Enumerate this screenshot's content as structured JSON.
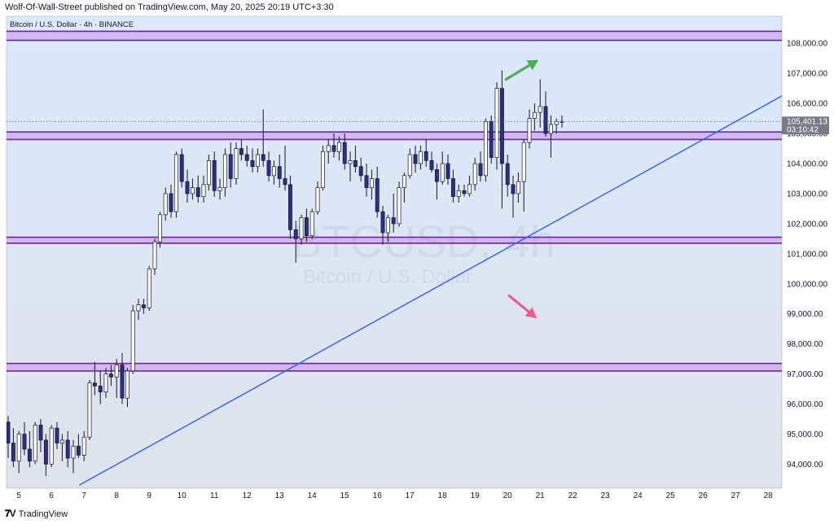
{
  "header": {
    "publish_line": "Wolf-Of-Wall-Street published on TradingView.com, May 20, 2025 20:19 UTC+3:30"
  },
  "footer": {
    "brand": "TradingView"
  },
  "chart_data": {
    "type": "candlestick",
    "symbol_line": "Bitcoin / U.S. Dollar · 4h · BINANCE",
    "watermark": {
      "symbol": "BTCUSD, 4h",
      "name": "Bitcoin / U.S. Dollar"
    },
    "y_axis": {
      "range": [
        93200,
        108900
      ],
      "ticks": [
        {
          "value": 94000,
          "label": "94,000.00"
        },
        {
          "value": 95000,
          "label": "95,000.00"
        },
        {
          "value": 96000,
          "label": "96,000.00"
        },
        {
          "value": 97000,
          "label": "97,000.00"
        },
        {
          "value": 98000,
          "label": "98,000.00"
        },
        {
          "value": 99000,
          "label": "99,000.00"
        },
        {
          "value": 100000,
          "label": "100,000.00"
        },
        {
          "value": 101000,
          "label": "101,000.00"
        },
        {
          "value": 102000,
          "label": "102,000.00"
        },
        {
          "value": 103000,
          "label": "103,000.00"
        },
        {
          "value": 104000,
          "label": "104,000.00"
        },
        {
          "value": 105000,
          "label": "105,000.00"
        },
        {
          "value": 106000,
          "label": "106,000.00"
        },
        {
          "value": 107000,
          "label": "107,000.00"
        },
        {
          "value": 108000,
          "label": "108,000.00"
        }
      ]
    },
    "x_axis": {
      "range": [
        4.62,
        28.42
      ],
      "ticks": [
        {
          "value": 5,
          "label": "5"
        },
        {
          "value": 6,
          "label": "6"
        },
        {
          "value": 7,
          "label": "7"
        },
        {
          "value": 8,
          "label": "8"
        },
        {
          "value": 9,
          "label": "9"
        },
        {
          "value": 10,
          "label": "10"
        },
        {
          "value": 11,
          "label": "11"
        },
        {
          "value": 12,
          "label": "12"
        },
        {
          "value": 13,
          "label": "13"
        },
        {
          "value": 14,
          "label": "14"
        },
        {
          "value": 15,
          "label": "15"
        },
        {
          "value": 16,
          "label": "16"
        },
        {
          "value": 17,
          "label": "17"
        },
        {
          "value": 18,
          "label": "18"
        },
        {
          "value": 19,
          "label": "19"
        },
        {
          "value": 20,
          "label": "20"
        },
        {
          "value": 21,
          "label": "21"
        },
        {
          "value": 22,
          "label": "22"
        },
        {
          "value": 23,
          "label": "23"
        },
        {
          "value": 24,
          "label": "24"
        },
        {
          "value": 25,
          "label": "25"
        },
        {
          "value": 26,
          "label": "26"
        },
        {
          "value": 27,
          "label": "27"
        },
        {
          "value": 28,
          "label": "28"
        }
      ]
    },
    "last_price": {
      "value": 105401.13,
      "label": "105,401.13",
      "countdown": "03:10:42"
    },
    "zones": [
      {
        "low": 108100,
        "high": 108400
      },
      {
        "low": 104800,
        "high": 105050
      },
      {
        "low": 101350,
        "high": 101550
      },
      {
        "low": 97100,
        "high": 97350
      }
    ],
    "trendline": {
      "x1": 6.85,
      "y1": 93300,
      "x2": 28.42,
      "y2": 106250
    },
    "arrows": [
      {
        "direction": "up",
        "x1": 19.95,
        "y1": 106800,
        "x2": 20.95,
        "y2": 107450,
        "color": "#4caf50"
      },
      {
        "direction": "down",
        "x1": 20.05,
        "y1": 99600,
        "x2": 20.9,
        "y2": 98850,
        "color": "#ec5b8c"
      }
    ],
    "colors": {
      "up": "#ffffff",
      "down": "#2a2e8c",
      "wick": "#131722",
      "zone_fill": "rgba(170,70,220,0.28)",
      "zone_border": "#7b1fa2",
      "trendline": "#2962ff",
      "background_top": "#dbe9fb",
      "background_bottom": "#dfe3ec"
    },
    "candles": [
      [
        4.67,
        95400,
        95600,
        94200,
        94700
      ],
      [
        4.83,
        94700,
        95200,
        93900,
        94100
      ],
      [
        5.0,
        94100,
        95100,
        93700,
        95000
      ],
      [
        5.17,
        95000,
        95400,
        94300,
        94500
      ],
      [
        5.33,
        94500,
        95100,
        93900,
        94100
      ],
      [
        5.5,
        94100,
        95400,
        94000,
        95300
      ],
      [
        5.67,
        95300,
        95500,
        94400,
        94800
      ],
      [
        5.83,
        94800,
        95000,
        93600,
        94000
      ],
      [
        6.0,
        94000,
        95300,
        93900,
        95200
      ],
      [
        6.17,
        95200,
        95400,
        94500,
        94700
      ],
      [
        6.33,
        94700,
        95000,
        94100,
        94800
      ],
      [
        6.5,
        94800,
        95100,
        93900,
        94200
      ],
      [
        6.67,
        94200,
        94800,
        93700,
        94600
      ],
      [
        6.83,
        94600,
        95000,
        94200,
        94300
      ],
      [
        7.0,
        94300,
        95100,
        94100,
        94900
      ],
      [
        7.17,
        94900,
        96800,
        94800,
        96700
      ],
      [
        7.33,
        96700,
        97400,
        96300,
        96600
      ],
      [
        7.5,
        96600,
        97100,
        96000,
        96400
      ],
      [
        7.67,
        96400,
        97200,
        96200,
        97000
      ],
      [
        7.83,
        97000,
        97300,
        96600,
        96900
      ],
      [
        8.0,
        96900,
        97500,
        96200,
        97300
      ],
      [
        8.17,
        97300,
        97700,
        96000,
        96200
      ],
      [
        8.33,
        96200,
        97200,
        95900,
        97100
      ],
      [
        8.5,
        97100,
        99300,
        97000,
        99100
      ],
      [
        8.67,
        99100,
        99500,
        98800,
        99300
      ],
      [
        8.83,
        99300,
        99500,
        99000,
        99200
      ],
      [
        9.0,
        99200,
        100600,
        99100,
        100500
      ],
      [
        9.17,
        100500,
        101500,
        100300,
        101400
      ],
      [
        9.33,
        101400,
        102400,
        101200,
        102300
      ],
      [
        9.5,
        102300,
        103200,
        102100,
        103000
      ],
      [
        9.67,
        103000,
        103300,
        102200,
        102400
      ],
      [
        9.83,
        102400,
        104400,
        102200,
        104300
      ],
      [
        10.0,
        104300,
        104500,
        103200,
        103400
      ],
      [
        10.17,
        103400,
        103800,
        102700,
        103000
      ],
      [
        10.33,
        103000,
        103500,
        102800,
        103200
      ],
      [
        10.5,
        103200,
        103600,
        102700,
        102900
      ],
      [
        10.67,
        102900,
        103600,
        102700,
        103300
      ],
      [
        10.83,
        103300,
        104300,
        103100,
        104100
      ],
      [
        11.0,
        104100,
        104400,
        102900,
        103100
      ],
      [
        11.17,
        103100,
        103500,
        102800,
        103200
      ],
      [
        11.33,
        103200,
        104500,
        102900,
        104300
      ],
      [
        11.5,
        104300,
        104700,
        103200,
        103500
      ],
      [
        11.67,
        103500,
        104700,
        103300,
        104500
      ],
      [
        11.83,
        104500,
        104800,
        104100,
        104300
      ],
      [
        12.0,
        104300,
        104600,
        103900,
        104100
      ],
      [
        12.17,
        104100,
        104500,
        103700,
        103900
      ],
      [
        12.33,
        103900,
        104500,
        103700,
        104300
      ],
      [
        12.5,
        104300,
        105800,
        103900,
        104100
      ],
      [
        12.67,
        104100,
        104400,
        103400,
        103600
      ],
      [
        12.83,
        103600,
        104100,
        103300,
        103900
      ],
      [
        13.0,
        103900,
        104300,
        103200,
        103500
      ],
      [
        13.17,
        103500,
        104600,
        103100,
        103300
      ],
      [
        13.33,
        103300,
        103600,
        101500,
        101800
      ],
      [
        13.5,
        101800,
        102100,
        100700,
        101500
      ],
      [
        13.67,
        101500,
        102300,
        101300,
        102200
      ],
      [
        13.83,
        102200,
        102500,
        101400,
        101600
      ],
      [
        14.0,
        101600,
        102500,
        101500,
        102400
      ],
      [
        14.17,
        102400,
        103400,
        102300,
        103200
      ],
      [
        14.33,
        103200,
        104600,
        103100,
        104400
      ],
      [
        14.5,
        104400,
        104800,
        104000,
        104600
      ],
      [
        14.67,
        104600,
        105000,
        104200,
        104400
      ],
      [
        14.83,
        104400,
        104900,
        104100,
        104700
      ],
      [
        15.0,
        104700,
        105000,
        103800,
        104000
      ],
      [
        15.17,
        104000,
        104400,
        103400,
        104100
      ],
      [
        15.33,
        104100,
        104600,
        103700,
        103900
      ],
      [
        15.5,
        103900,
        104200,
        103400,
        103600
      ],
      [
        15.67,
        103600,
        104000,
        102900,
        103200
      ],
      [
        15.83,
        103200,
        103800,
        102800,
        103500
      ],
      [
        16.0,
        103500,
        103900,
        102200,
        102400
      ],
      [
        16.17,
        102400,
        102600,
        101300,
        101700
      ],
      [
        16.33,
        101700,
        102300,
        101400,
        102200
      ],
      [
        16.5,
        102200,
        103000,
        101700,
        102000
      ],
      [
        16.67,
        102000,
        103400,
        101900,
        103200
      ],
      [
        16.83,
        103200,
        103700,
        102700,
        103600
      ],
      [
        17.0,
        103600,
        104500,
        103500,
        104300
      ],
      [
        17.17,
        104300,
        104600,
        103700,
        104000
      ],
      [
        17.33,
        104000,
        104600,
        103800,
        104400
      ],
      [
        17.5,
        104400,
        104800,
        103900,
        104100
      ],
      [
        17.67,
        104100,
        104400,
        103700,
        103800
      ],
      [
        17.83,
        103800,
        104000,
        102800,
        103400
      ],
      [
        18.0,
        103400,
        104400,
        103300,
        104000
      ],
      [
        18.17,
        104000,
        104300,
        103300,
        103500
      ],
      [
        18.33,
        103500,
        103800,
        102700,
        102900
      ],
      [
        18.5,
        102900,
        103300,
        102700,
        103100
      ],
      [
        18.67,
        103100,
        103300,
        102900,
        103000
      ],
      [
        18.83,
        103000,
        103600,
        102900,
        103300
      ],
      [
        19.0,
        103300,
        104200,
        103100,
        104000
      ],
      [
        19.17,
        104000,
        104400,
        103400,
        103600
      ],
      [
        19.33,
        103600,
        105500,
        103400,
        105400
      ],
      [
        19.5,
        105400,
        105600,
        104000,
        104200
      ],
      [
        19.67,
        104200,
        106700,
        103800,
        106500
      ],
      [
        19.83,
        106500,
        107100,
        102500,
        104000
      ],
      [
        20.0,
        104000,
        104300,
        102900,
        103300
      ],
      [
        20.17,
        103300,
        103600,
        102200,
        103000
      ],
      [
        20.33,
        103000,
        103700,
        102700,
        103400
      ],
      [
        20.5,
        103400,
        104800,
        102400,
        104700
      ],
      [
        20.67,
        104700,
        105800,
        104500,
        105500
      ],
      [
        20.83,
        105500,
        106000,
        105100,
        105700
      ],
      [
        21.0,
        105700,
        106800,
        105200,
        105900
      ],
      [
        21.17,
        105900,
        106400,
        104900,
        105000
      ],
      [
        21.33,
        105000,
        105600,
        104200,
        105300
      ],
      [
        21.5,
        105300,
        105500,
        105000,
        105400
      ],
      [
        21.67,
        105400,
        105600,
        105200,
        105400
      ]
    ]
  }
}
